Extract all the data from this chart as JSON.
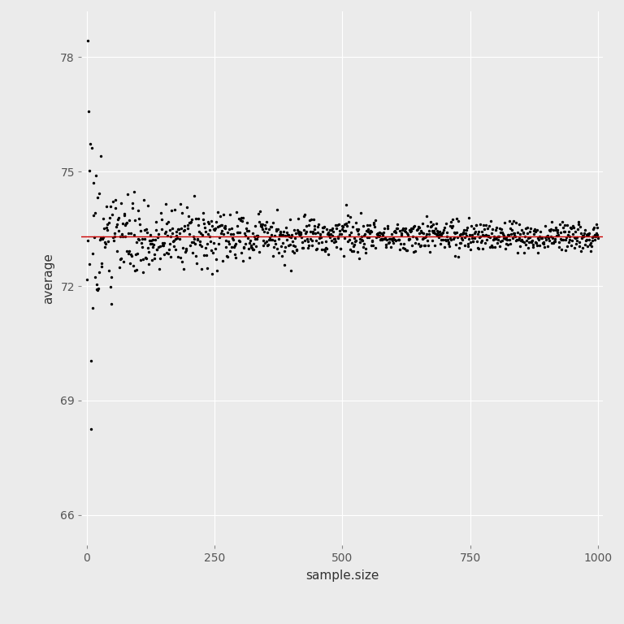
{
  "title": "",
  "xlabel": "sample.size",
  "ylabel": "average",
  "xlim": [
    -10,
    1010
  ],
  "ylim": [
    65.2,
    79.2
  ],
  "true_mean": 73.3,
  "background_color": "#EBEBEB",
  "grid_color": "#FFFFFF",
  "dot_color": "#000000",
  "line_color": "#CC0000",
  "dot_size": 6,
  "dot_alpha": 1.0,
  "yticks": [
    66,
    69,
    72,
    75,
    78
  ],
  "xticks": [
    0,
    250,
    500,
    750,
    1000
  ],
  "pop_std": 5.5,
  "seed": 12345,
  "n_points": 1000
}
